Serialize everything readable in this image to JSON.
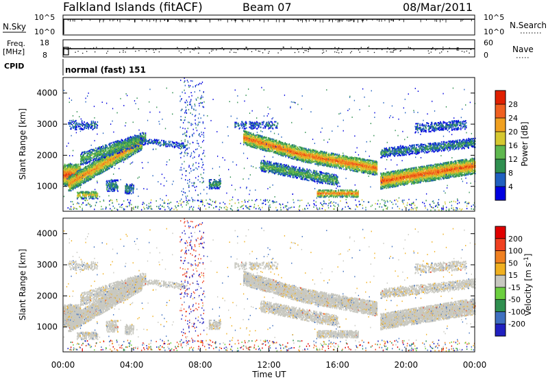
{
  "header": {
    "site": "Falkland Islands (fitACF)",
    "beam": "Beam 07",
    "date": "08/Mar/2011"
  },
  "top_panels": {
    "nsky_label": "N.Sky",
    "nsky_ticks": [
      "10^5",
      "10^0"
    ],
    "nsearch_label": "N.Search",
    "nsearch_ticks": [
      "10^5",
      "10^0"
    ],
    "freq_label_1": "Freq.",
    "freq_label_2": "[MHz]",
    "freq_ticks": [
      "18",
      "8"
    ],
    "nave_label": "Nave",
    "nave_ticks": [
      "60",
      "0"
    ],
    "cpid_label": "CPID",
    "cpid_text": "normal (fast) 151"
  },
  "chart_data": [
    {
      "type": "heatmap",
      "panel": "power",
      "ylabel": "Slant Range [km]",
      "yticks": [
        "1000",
        "2000",
        "3000",
        "4000"
      ],
      "ylim": [
        200,
        4500
      ],
      "xlim": [
        0,
        24
      ],
      "colorbar": {
        "label": "Power [dB]",
        "ticks": [
          "4",
          "8",
          "12",
          "16",
          "20",
          "24",
          "28"
        ],
        "range": [
          0,
          32
        ],
        "colors": [
          "#0000e0",
          "#2060c0",
          "#2f8f4f",
          "#5fb84f",
          "#d6c830",
          "#f0a020",
          "#f06020",
          "#e02000"
        ]
      }
    },
    {
      "type": "heatmap",
      "panel": "velocity",
      "ylabel": "Slant Range [km]",
      "yticks": [
        "1000",
        "2000",
        "3000",
        "4000"
      ],
      "ylim": [
        200,
        4500
      ],
      "xlim": [
        0,
        24
      ],
      "colorbar": {
        "label": "Velocity [m s^-1]",
        "ticks": [
          "200",
          "100",
          "50",
          "15",
          "-15",
          "-50",
          "-100",
          "-200"
        ],
        "colors": [
          "#2020c0",
          "#3f70c0",
          "#2f8f4f",
          "#6ccf3f",
          "#c8c8c0",
          "#f0b020",
          "#f08020",
          "#f04020",
          "#e00000"
        ]
      },
      "xlabel": "Time UT",
      "xticks": [
        "00:00",
        "04:00",
        "08:00",
        "12:00",
        "16:00",
        "20:00",
        "00:00"
      ]
    }
  ]
}
